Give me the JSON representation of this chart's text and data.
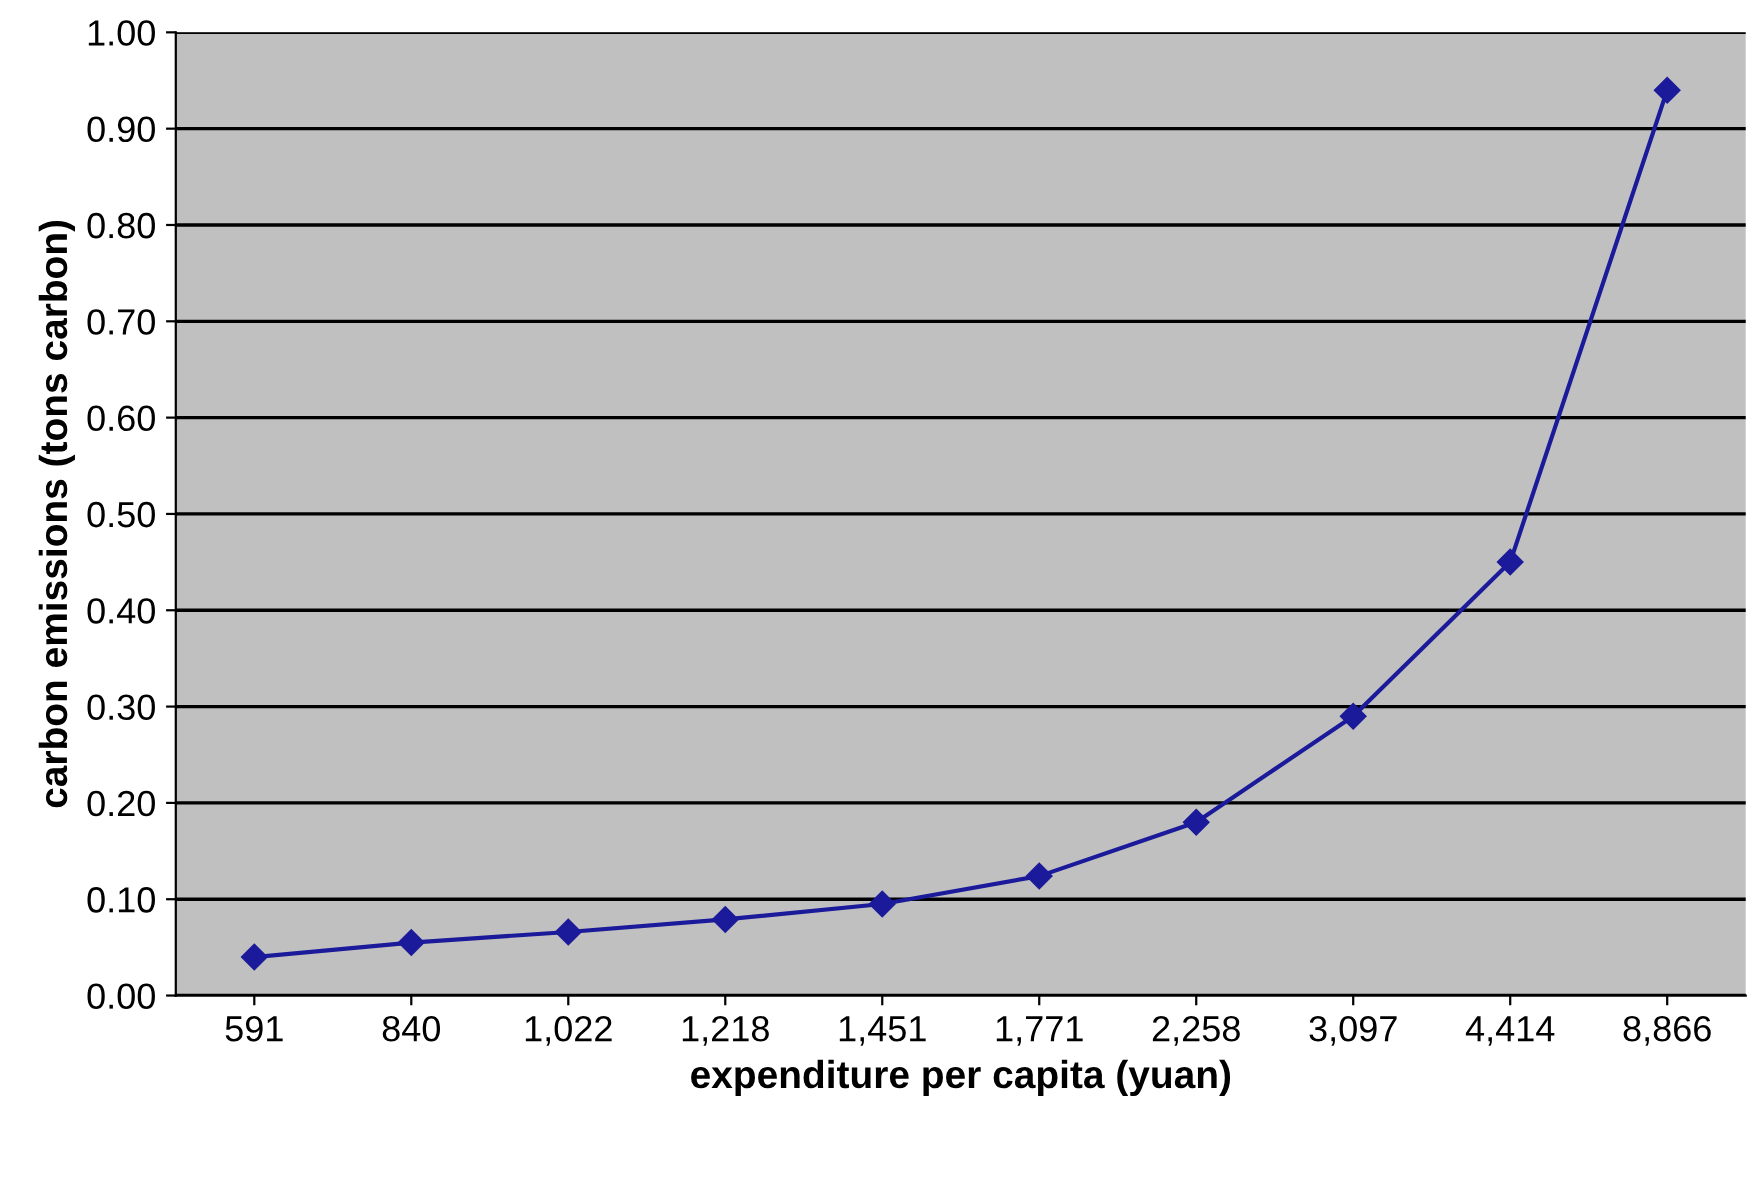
{
  "chart_data": {
    "type": "line",
    "xlabel": "expenditure per capita (yuan)",
    "ylabel": "carbon emissions (tons carbon)",
    "categories": [
      "591",
      "840",
      "1,022",
      "1,218",
      "1,451",
      "1,771",
      "2,258",
      "3,097",
      "4,414",
      "8,866"
    ],
    "series": [
      {
        "color": "#1a1a9a",
        "values": [
          0.04,
          0.055,
          0.066,
          0.079,
          0.095,
          0.124,
          0.18,
          0.29,
          0.45,
          0.94
        ]
      }
    ],
    "ylim": [
      0,
      1.0
    ],
    "yticks": [
      {
        "value": 0,
        "label": "0.00"
      },
      {
        "value": 0.1,
        "label": "0.10"
      },
      {
        "value": 0.2,
        "label": "0.20"
      },
      {
        "value": 0.3,
        "label": "0.30"
      },
      {
        "value": 0.4,
        "label": "0.40"
      },
      {
        "value": 0.5,
        "label": "0.50"
      },
      {
        "value": 0.6,
        "label": "0.60"
      },
      {
        "value": 0.7,
        "label": "0.70"
      },
      {
        "value": 0.8,
        "label": "0.80"
      },
      {
        "value": 0.9,
        "label": "0.90"
      },
      {
        "value": 1.0,
        "label": "1.00"
      }
    ],
    "grid": "y",
    "marker": "diamond",
    "line_style": "solid"
  }
}
